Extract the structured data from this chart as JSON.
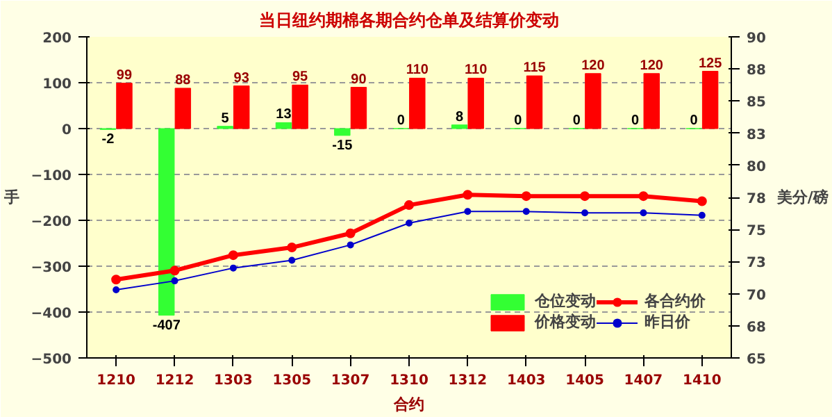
{
  "chart_data": {
    "type": "bar",
    "title": "当日纽约期棉各期合约仓单及结算价变动",
    "ylabel": "手",
    "y2label": "美分/磅",
    "xlabel": "合约",
    "categories": [
      "1210",
      "1212",
      "1303",
      "1305",
      "1307",
      "1310",
      "1312",
      "1403",
      "1405",
      "1407",
      "1410"
    ],
    "series": [
      {
        "name": "仓位变动",
        "color": "#33ff33",
        "values": [
          -2,
          -407,
          5,
          13,
          -15,
          0,
          8,
          0,
          0,
          0,
          0
        ],
        "value_labels": [
          "-2",
          "-407",
          "5",
          "13",
          "-15",
          "0",
          "8",
          "0",
          "0",
          "0",
          "0"
        ]
      },
      {
        "name": "价格变动",
        "color": "#ff0000",
        "values": [
          99,
          88,
          93,
          95,
          90,
          110,
          110,
          115,
          120,
          120,
          125
        ],
        "value_labels": [
          "99",
          "88",
          "93",
          "95",
          "90",
          "110",
          "110",
          "115",
          "120",
          "120",
          "125"
        ]
      },
      {
        "name": "各合约价",
        "type": "line",
        "axis": "y2",
        "color": "#ff0000",
        "values": [
          71.1,
          71.8,
          73.0,
          73.6,
          74.7,
          76.9,
          77.7,
          77.6,
          77.6,
          77.6,
          77.2
        ]
      },
      {
        "name": "昨日价",
        "type": "line",
        "axis": "y2",
        "color": "#0000cc",
        "values": [
          70.3,
          71.0,
          72.0,
          72.6,
          73.8,
          75.5,
          76.4,
          76.4,
          76.3,
          76.3,
          76.1
        ]
      }
    ],
    "ylim": [
      -500,
      200
    ],
    "yticks": [
      -500,
      -400,
      -300,
      -200,
      -100,
      0,
      100,
      200
    ],
    "y2lim": [
      65,
      90
    ],
    "y2ticks": [
      65,
      {
        "value": 67.5,
        "label": "68"
      },
      70,
      {
        "value": 72.5,
        "label": "73"
      },
      75,
      {
        "value": 77.5,
        "label": "78"
      },
      80,
      {
        "value": 82.5,
        "label": "83"
      },
      85,
      {
        "value": 87.5,
        "label": "88"
      },
      90
    ],
    "grid": "y",
    "legend": "bottom right",
    "marker": "circle"
  }
}
